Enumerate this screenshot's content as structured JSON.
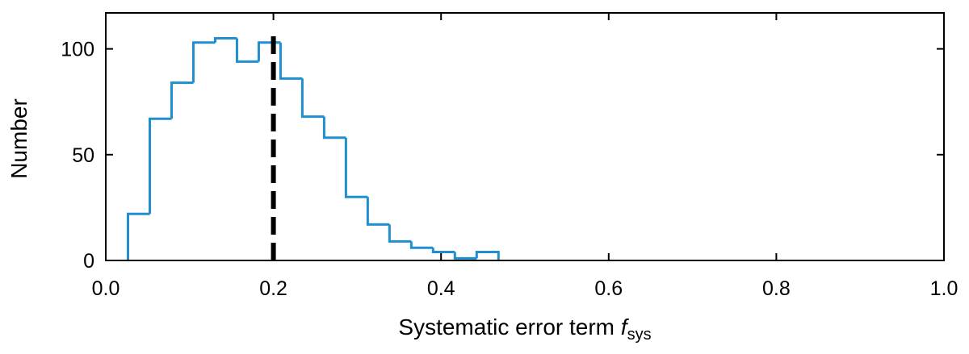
{
  "chart_data": {
    "type": "histogram",
    "xlabel_main": "Systematic error term ",
    "xlabel_italic": "f",
    "xlabel_sub": "sys",
    "ylabel": "Number",
    "xlim": [
      0.0,
      1.0
    ],
    "ylim": [
      0,
      117
    ],
    "xticks": [
      0.0,
      0.2,
      0.4,
      0.6,
      0.8,
      1.0
    ],
    "xtick_labels": [
      "0.0",
      "0.2",
      "0.4",
      "0.6",
      "0.8",
      "1.0"
    ],
    "yticks": [
      0,
      50,
      100
    ],
    "ytick_labels": [
      "0",
      "50",
      "100"
    ],
    "bin_edges": [
      0.0265,
      0.0525,
      0.0785,
      0.1045,
      0.1305,
      0.1565,
      0.1825,
      0.2085,
      0.2345,
      0.2605,
      0.2865,
      0.3125,
      0.3385,
      0.3645,
      0.3905,
      0.4165,
      0.4425,
      0.4685
    ],
    "counts": [
      22,
      67,
      84,
      103,
      105,
      94,
      103,
      86,
      68,
      58,
      30,
      17,
      9,
      6,
      4,
      1,
      4
    ],
    "hist_color": "#1f8fd0",
    "reference_line": {
      "x": 0.2,
      "style": "dashed",
      "color": "#000000"
    },
    "grid": false
  }
}
